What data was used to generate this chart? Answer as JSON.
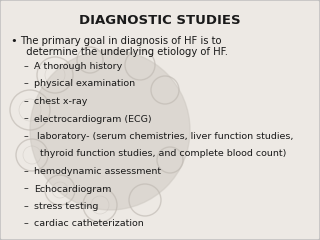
{
  "title": "DIAGNOSTIC STUDIES",
  "title_fontsize": 9.5,
  "bg_color": "#ede9e4",
  "border_color": "#bbbbbb",
  "text_color": "#1a1a1a",
  "bullet_main_line1": "The primary goal in diagnosis of HF is to",
  "bullet_main_line2": "  determine the underlying etiology of HF.",
  "sub_items": [
    "A thorough history",
    "physical examination",
    "chest x-ray",
    "electrocardiogram (ECG)",
    " laboratory- (serum chemistries, liver function studies,",
    "  thyroid function studies, and complete blood count)",
    "hemodynamic assessment",
    "Echocardiogram",
    "stress testing",
    "cardiac catheterization"
  ],
  "sub_has_dash": [
    true,
    true,
    true,
    true,
    true,
    false,
    true,
    true,
    true,
    true
  ],
  "main_fontsize": 7.2,
  "sub_fontsize": 6.8,
  "watermark_color": "#cec9c2",
  "watermark_alpha": 0.6,
  "circle_color": "#bfb9b2"
}
